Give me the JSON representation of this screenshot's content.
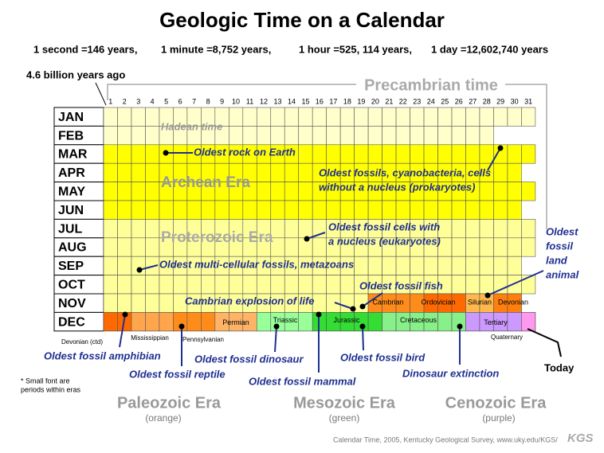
{
  "header": {
    "title": "Geologic Time on a Calendar",
    "scale": [
      "1 second =146 years,",
      "1 minute =8,752 years,",
      "1 hour =525, 114 years,",
      "1 day =12,602,740 years"
    ]
  },
  "start_label": "4.6 billion years ago",
  "precambrian_label": "Precambrian time",
  "days": [
    1,
    2,
    3,
    4,
    5,
    6,
    7,
    8,
    9,
    10,
    11,
    12,
    13,
    14,
    15,
    16,
    17,
    18,
    19,
    20,
    21,
    22,
    23,
    24,
    25,
    26,
    27,
    28,
    29,
    30,
    31
  ],
  "months": [
    "JAN",
    "FEB",
    "MAR",
    "APR",
    "MAY",
    "JUN",
    "JUL",
    "AUG",
    "SEP",
    "OCT",
    "NOV",
    "DEC"
  ],
  "era_labels": [
    "Hadean time",
    "Archean Era",
    "Proterozoic Era"
  ],
  "periods": [
    "Cambrian",
    "Ordovician",
    "Silurian",
    "Devonian",
    "Devonian (ctd)",
    "Mississippian",
    "Pennsylvanian",
    "Permian",
    "Triassic",
    "Jurassic",
    "Cretaceous",
    "Tertiary",
    "Quaternary"
  ],
  "annotations": [
    [
      "Oldest rock on Earth"
    ],
    [
      "Oldest fossils, cyanobacteria, cells",
      "without a nucleus (prokaryotes)"
    ],
    [
      "Oldest fossil cells with",
      "a nucleus (eukaryotes)"
    ],
    [
      "Oldest multi-cellular fossils, metazoans"
    ],
    [
      "Oldest fossil fish"
    ],
    [
      "Oldest",
      "fossil",
      "land",
      "animal"
    ],
    [
      "Cambrian explosion of life"
    ],
    [
      "Oldest fossil amphibian"
    ],
    [
      "Oldest fossil reptile"
    ],
    [
      "Oldest fossil dinosaur"
    ],
    [
      "Oldest fossil mammal"
    ],
    [
      "Oldest fossil bird"
    ],
    [
      "Dinosaur extinction"
    ]
  ],
  "today": "Today",
  "footnote": [
    "* Small font are",
    "periods within eras"
  ],
  "eras": [
    {
      "name": "Paleozoic Era",
      "note": "(orange)"
    },
    {
      "name": "Mesozoic Era",
      "note": "(green)"
    },
    {
      "name": "Cenozoic Era",
      "note": "(purple)"
    }
  ],
  "credit": "Calendar Time, 2005, Kentucky Geological Survey, www.uky.edu/KGS/",
  "logo": "KGS"
}
